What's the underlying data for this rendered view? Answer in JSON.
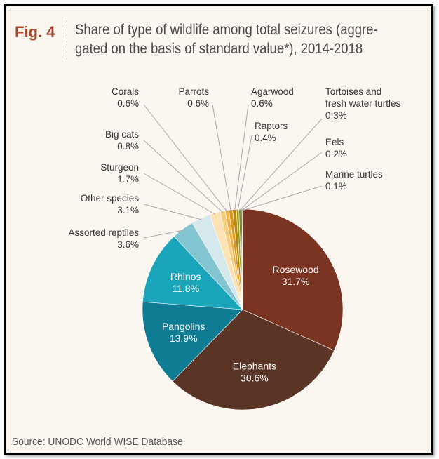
{
  "figure": {
    "label": "Fig. 4",
    "title_line1": "Share of type of wildlife among total seizures (aggre-",
    "title_line2": "gated on the basis of standard value*), 2014-2018",
    "source": "Source: UNODC World WISE Database"
  },
  "chart_data": {
    "type": "pie",
    "title": "Share of type of wildlife among total seizures (aggregated on the basis of standard value*), 2014-2018",
    "unit": "%",
    "slices": [
      {
        "label": "Rosewood",
        "value": 31.7,
        "value_text": "31.7%",
        "color": "#7b3322",
        "label_inside": true
      },
      {
        "label": "Elephants",
        "value": 30.6,
        "value_text": "30.6%",
        "color": "#5a3526",
        "label_inside": true
      },
      {
        "label": "Pangolins",
        "value": 13.9,
        "value_text": "13.9%",
        "color": "#0f7c93",
        "label_inside": true
      },
      {
        "label": "Rhinos",
        "value": 11.8,
        "value_text": "11.8%",
        "color": "#1aa5bb",
        "label_inside": true
      },
      {
        "label": "Assorted reptiles",
        "value": 3.6,
        "value_text": "3.6%",
        "color": "#82c4cf",
        "label_inside": false
      },
      {
        "label": "Other species",
        "value": 3.1,
        "value_text": "3.1%",
        "color": "#d5e8ec",
        "label_inside": false
      },
      {
        "label": "Sturgeon",
        "value": 1.7,
        "value_text": "1.7%",
        "color": "#fce2b4",
        "label_inside": false
      },
      {
        "label": "Big cats",
        "value": 0.8,
        "value_text": "0.8%",
        "color": "#f6cd7c",
        "label_inside": false
      },
      {
        "label": "Corals",
        "value": 0.6,
        "value_text": "0.6%",
        "color": "#eeb24c",
        "label_inside": false
      },
      {
        "label": "Parrots",
        "value": 0.6,
        "value_text": "0.6%",
        "color": "#d99a1c",
        "label_inside": false
      },
      {
        "label": "Agarwood",
        "value": 0.6,
        "value_text": "0.6%",
        "color": "#b8860b",
        "label_inside": false
      },
      {
        "label": "Raptors",
        "value": 0.4,
        "value_text": "0.4%",
        "color": "#98a022",
        "label_inside": false
      },
      {
        "label": "Tortoises and fresh water turtles",
        "value": 0.3,
        "value_text": "0.3%",
        "color": "#7c8a2c",
        "label_inside": false
      },
      {
        "label": "Eels",
        "value": 0.2,
        "value_text": "0.2%",
        "color": "#5f6f3a",
        "label_inside": false
      },
      {
        "label": "Marine turtles",
        "value": 0.1,
        "value_text": "0.1%",
        "color": "#3d5530",
        "label_inside": false
      }
    ]
  }
}
